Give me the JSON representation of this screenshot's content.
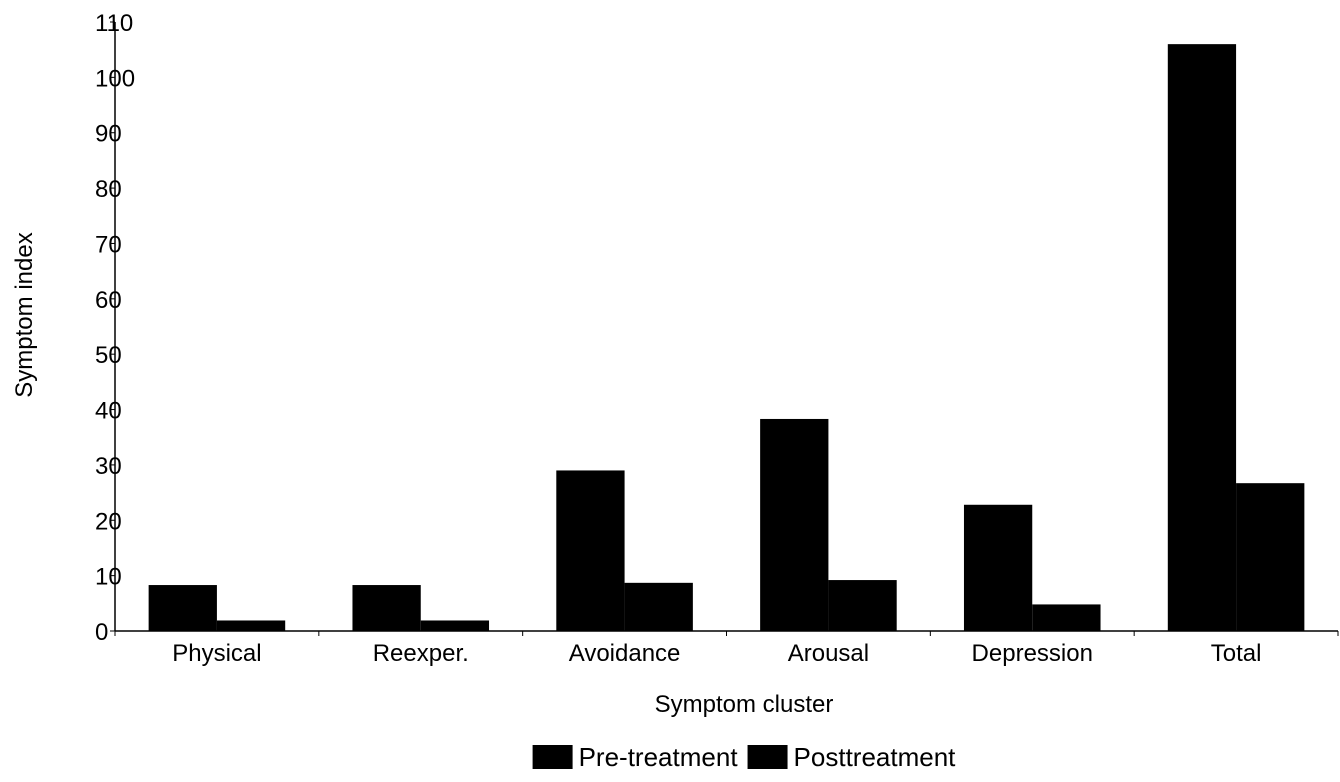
{
  "chart_data": {
    "type": "bar",
    "categories": [
      "Physical",
      "Reexper.",
      "Avoidance",
      "Arousal",
      "Depression",
      "Total"
    ],
    "series": [
      {
        "name": "Pre-treatment",
        "values": [
          8.3,
          8.3,
          29,
          38.3,
          22.8,
          106
        ],
        "color": "#000000"
      },
      {
        "name": "Posttreatment",
        "values": [
          1.9,
          1.9,
          8.7,
          9.2,
          4.8,
          26.7
        ],
        "color": "#000000"
      }
    ],
    "title": "",
    "xlabel": "Symptom cluster",
    "ylabel": "Symptom index",
    "ylim": [
      0,
      110
    ],
    "yticks": [
      "0",
      "10",
      "20",
      "30",
      "40",
      "50",
      "60",
      "70",
      "80",
      "90",
      "100",
      "110"
    ],
    "grid": false,
    "legend_position": "bottom-center"
  }
}
